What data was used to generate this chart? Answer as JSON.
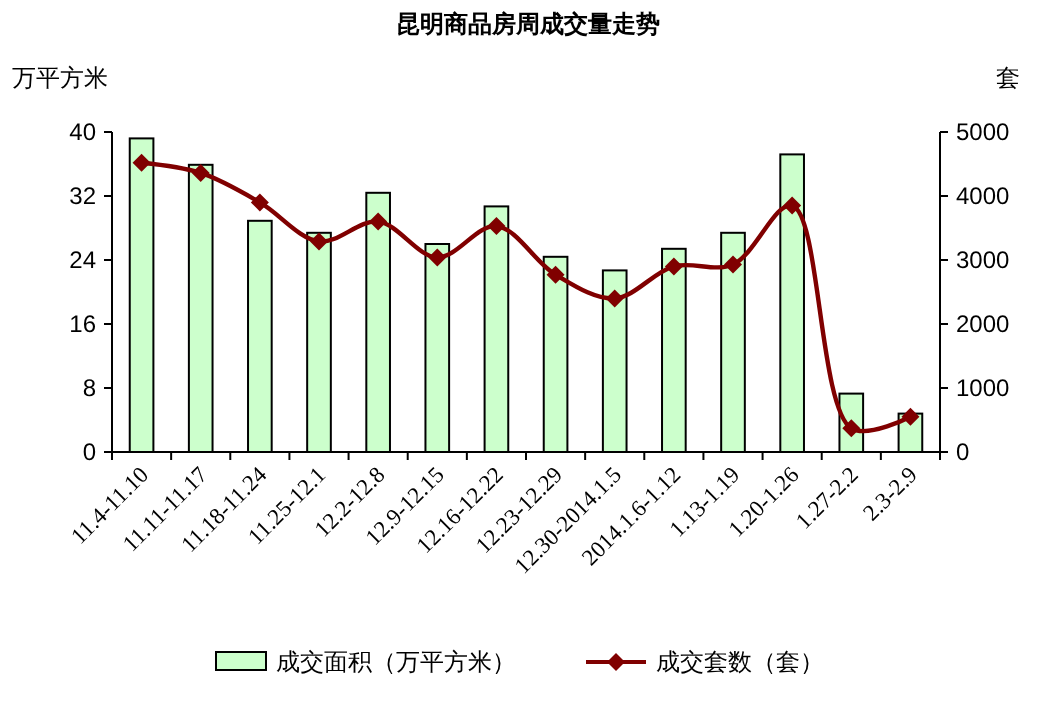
{
  "chart_data": {
    "type": "bar",
    "title": "昆明商品房周成交量走势",
    "ylabel": "万平方米",
    "y2label": "套",
    "categories": [
      "11.4-11.10",
      "11.11-11.17",
      "11.18-11.24",
      "11.25-12.1",
      "12.2-12.8",
      "12.9-12.15",
      "12.16-12.22",
      "12.23-12.29",
      "12.30-2014.1.5",
      "2014.1.6-1.12",
      "1.13-1.19",
      "1.20-1.26",
      "1.27-2.2",
      "2.3-2.9"
    ],
    "series": [
      {
        "name": "成交面积（万平方米）",
        "color": "#ccffcc",
        "values": [
          39.2,
          35.9,
          28.9,
          27.4,
          32.4,
          26,
          30.7,
          24.4,
          22.7,
          25.4,
          27.4,
          37.2,
          7.3,
          4.8
        ]
      },
      {
        "name": "成交套数（套）",
        "type": "line",
        "axis": "y2",
        "color": "#800000",
        "marker": "diamond",
        "values": [
          4520,
          4360,
          3900,
          3290,
          3600,
          3040,
          3530,
          2770,
          2400,
          2900,
          2930,
          3850,
          370,
          550
        ]
      }
    ],
    "ylim": [
      0,
      40
    ],
    "yticks": [
      0,
      8,
      16,
      24,
      32,
      40
    ],
    "y2lim": [
      0,
      5000
    ],
    "y2ticks": [
      0,
      1000,
      2000,
      3000,
      4000,
      5000
    ],
    "legend": "bottom",
    "grid": false
  }
}
